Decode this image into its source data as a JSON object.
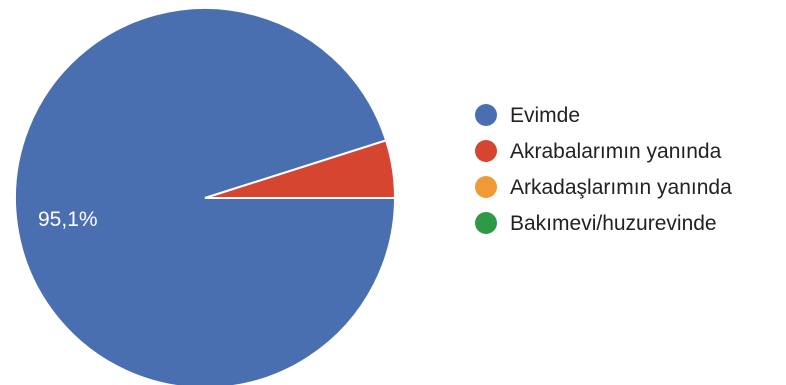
{
  "chart_data": {
    "type": "pie",
    "slices": [
      {
        "name": "Evimde",
        "value": 95.1,
        "color": "#4A6FB0",
        "label": "95,1%"
      },
      {
        "name": "Akrabalarımın yanında",
        "value": 4.9,
        "color": "#D6452F",
        "label": ""
      },
      {
        "name": "Arkadaşlarımın yanında",
        "value": 0,
        "color": "#F09A36",
        "label": ""
      },
      {
        "name": "Bakımevi/huzurevinde",
        "value": 0,
        "color": "#2E9A45",
        "label": ""
      }
    ],
    "legend_position": "right",
    "start_angle": "3 o'clock, counterclockwise"
  }
}
